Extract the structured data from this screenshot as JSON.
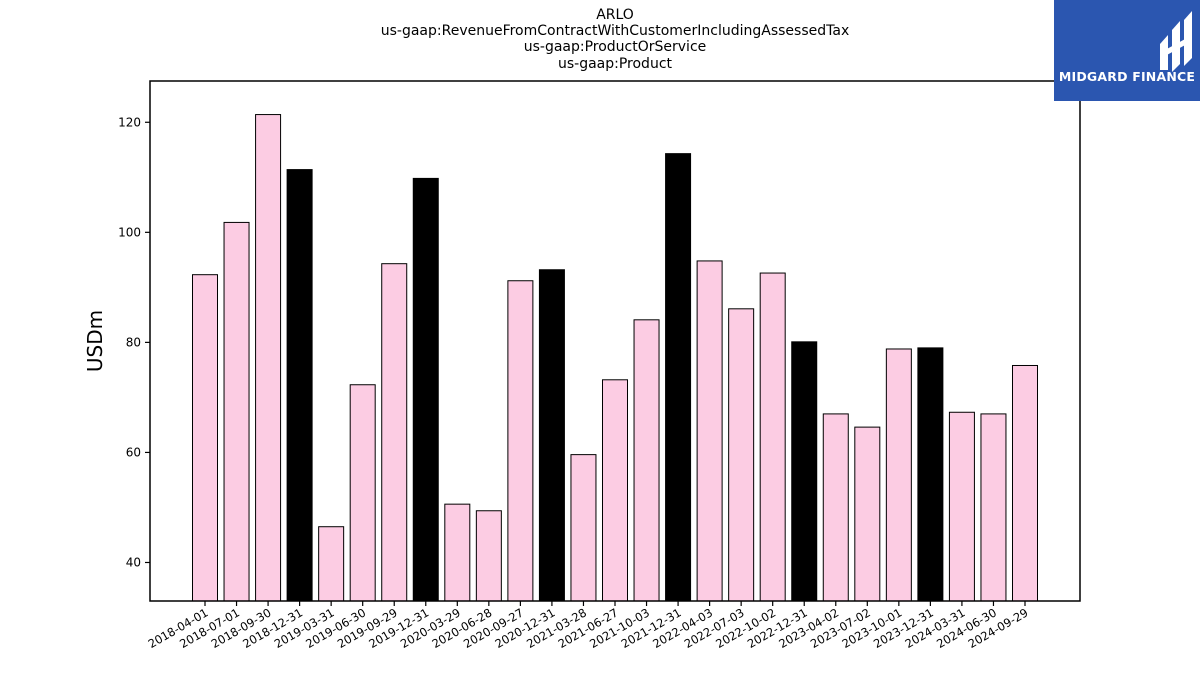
{
  "chart_data": {
    "type": "bar",
    "title_lines": [
      "ARLO",
      "us-gaap:RevenueFromContractWithCustomerIncludingAssessedTax",
      "us-gaap:ProductOrService",
      "us-gaap:Product"
    ],
    "ylabel": "USDm",
    "xlabel": "",
    "ylim": [
      33,
      127.5
    ],
    "yticks": [
      40,
      60,
      80,
      100,
      120
    ],
    "categories": [
      "2018-04-01",
      "2018-07-01",
      "2018-09-30",
      "2018-12-31",
      "2019-03-31",
      "2019-06-30",
      "2019-09-29",
      "2019-12-31",
      "2020-03-29",
      "2020-06-28",
      "2020-09-27",
      "2020-12-31",
      "2021-03-28",
      "2021-06-27",
      "2021-10-03",
      "2021-12-31",
      "2022-04-03",
      "2022-07-03",
      "2022-10-02",
      "2022-12-31",
      "2023-04-02",
      "2023-07-02",
      "2023-10-01",
      "2023-12-31",
      "2024-03-31",
      "2024-06-30",
      "2024-09-29"
    ],
    "values": [
      92.3,
      101.8,
      121.4,
      111.4,
      46.5,
      72.3,
      94.3,
      109.8,
      50.6,
      49.4,
      91.2,
      93.2,
      59.6,
      73.2,
      84.1,
      114.3,
      94.8,
      86.1,
      92.6,
      80.1,
      67.0,
      64.6,
      78.8,
      79.0,
      67.3,
      67.0,
      75.8
    ],
    "bar_colors": {
      "quarter": "#fccce3",
      "year_end": "#000000"
    },
    "year_end_flags": [
      false,
      false,
      false,
      true,
      false,
      false,
      false,
      true,
      false,
      false,
      false,
      true,
      false,
      false,
      false,
      true,
      false,
      false,
      false,
      true,
      false,
      false,
      false,
      true,
      false,
      false,
      false
    ],
    "grid": false
  },
  "logo": {
    "text": "MIDGARD FINANCE",
    "background": "#2b56b0"
  }
}
